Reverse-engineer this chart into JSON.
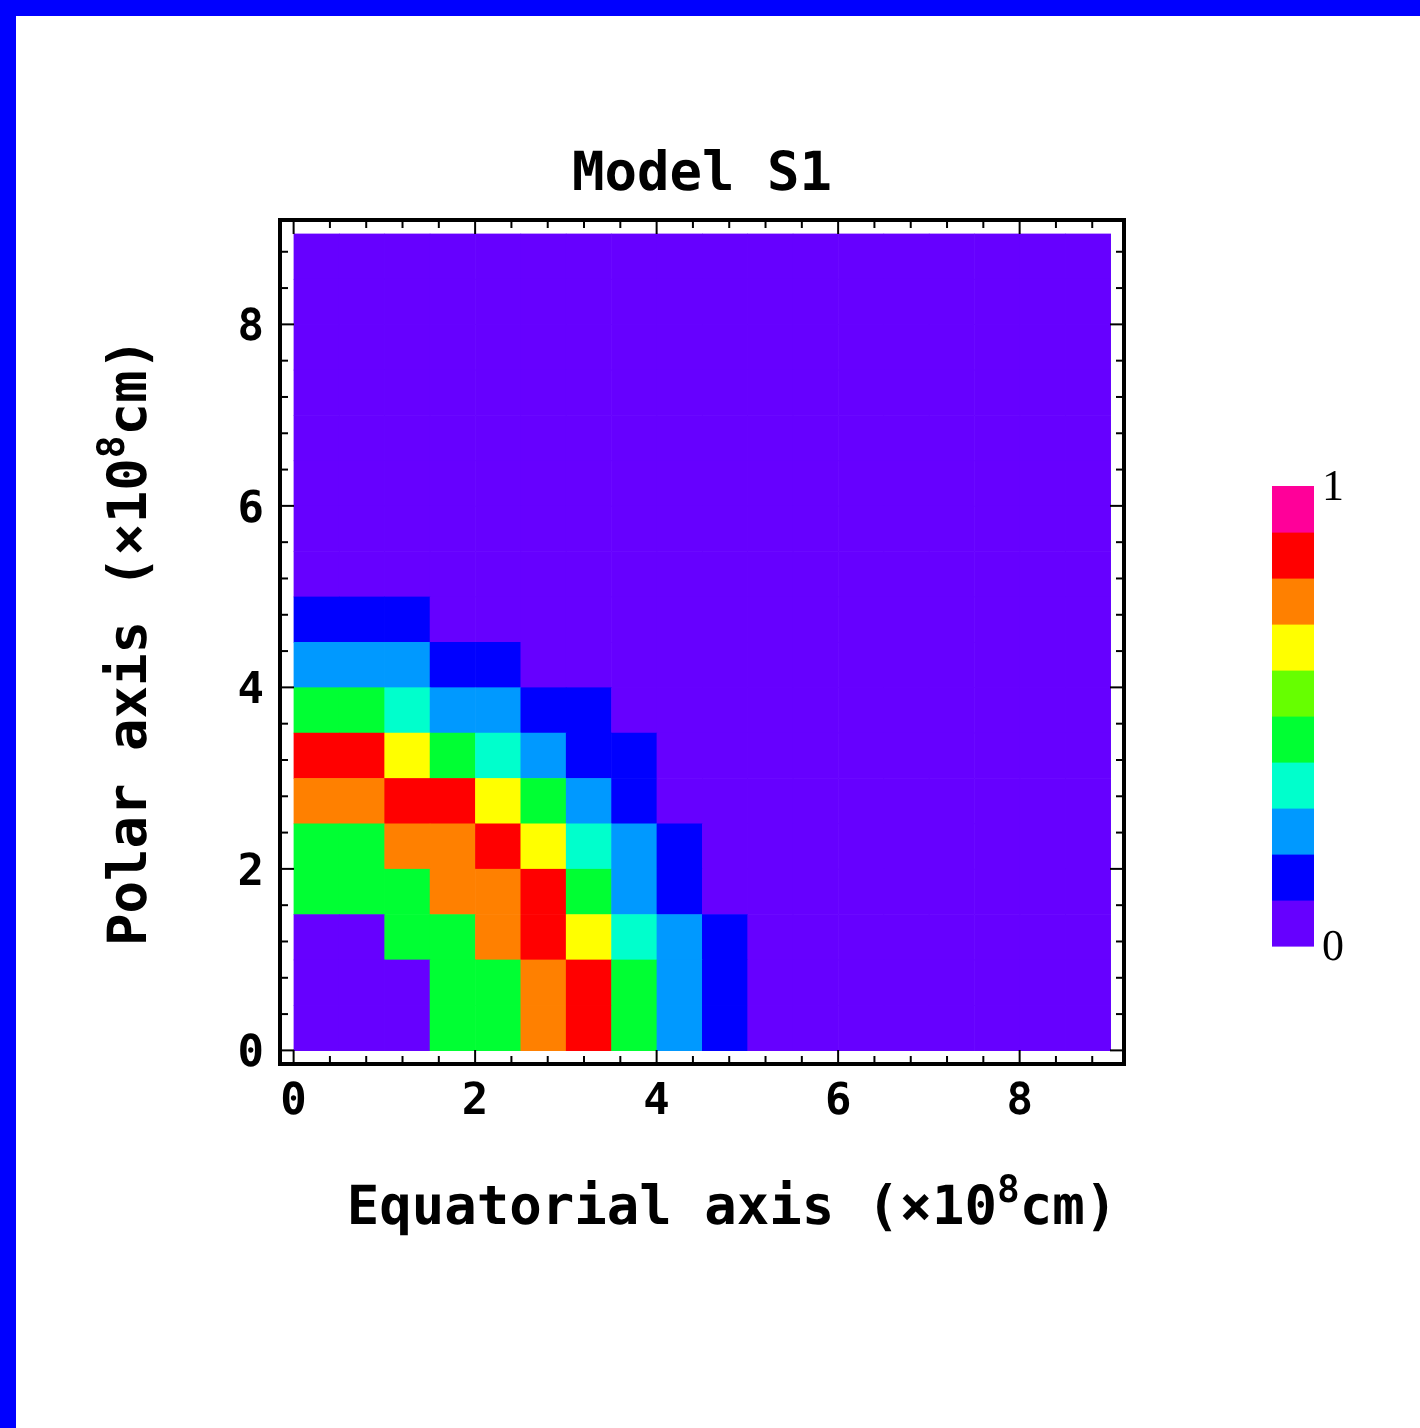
{
  "chart_data": {
    "type": "heatmap",
    "title": "Model S1",
    "xlabel": "Equatorial axis (×10$^{8}$cm)",
    "ylabel": "Polar axis (×10$^{8}$cm)",
    "x": [
      0.25,
      0.75,
      1.25,
      1.75,
      2.25,
      2.75,
      3.25,
      3.75,
      4.25,
      4.75,
      5.25,
      5.75,
      6.25,
      6.75,
      7.25,
      7.75,
      8.25,
      8.75
    ],
    "y": [
      8.75,
      8.25,
      7.75,
      7.25,
      6.75,
      6.25,
      5.75,
      5.25,
      4.75,
      4.25,
      3.75,
      3.25,
      2.75,
      2.25,
      1.75,
      1.25,
      0.75,
      0.25
    ],
    "xlim": [
      -0.15,
      9.15
    ],
    "ylim": [
      -0.15,
      9.15
    ],
    "xticks": [
      0,
      {
        "value": 0.4,
        "label": null
      },
      {
        "value": 0.8,
        "label": null
      },
      {
        "value": 1.2,
        "label": null
      },
      {
        "value": 1.6,
        "label": null
      },
      2,
      {
        "value": 2.4,
        "label": null
      },
      {
        "value": 2.8,
        "label": null
      },
      {
        "value": 3.2,
        "label": null
      },
      {
        "value": 3.6,
        "label": null
      },
      4,
      {
        "value": 4.4,
        "label": null
      },
      {
        "value": 4.8,
        "label": null
      },
      {
        "value": 5.2,
        "label": null
      },
      {
        "value": 5.6,
        "label": null
      },
      6,
      {
        "value": 6.4,
        "label": null
      },
      {
        "value": 6.8,
        "label": null
      },
      {
        "value": 7.2,
        "label": null
      },
      {
        "value": 7.6,
        "label": null
      },
      8,
      {
        "value": 8.4,
        "label": null
      },
      {
        "value": 8.8,
        "label": null
      }
    ],
    "yticks": [
      0,
      {
        "value": 0.4,
        "label": null
      },
      {
        "value": 0.8,
        "label": null
      },
      {
        "value": 1.2,
        "label": null
      },
      {
        "value": 1.6,
        "label": null
      },
      2,
      {
        "value": 2.4,
        "label": null
      },
      {
        "value": 2.8,
        "label": null
      },
      {
        "value": 3.2,
        "label": null
      },
      {
        "value": 3.6,
        "label": null
      },
      4,
      {
        "value": 4.4,
        "label": null
      },
      {
        "value": 4.8,
        "label": null
      },
      {
        "value": 5.2,
        "label": null
      },
      {
        "value": 5.6,
        "label": null
      },
      6,
      {
        "value": 6.4,
        "label": null
      },
      {
        "value": 6.8,
        "label": null
      },
      {
        "value": 7.2,
        "label": null
      },
      {
        "value": 7.6,
        "label": null
      },
      8,
      {
        "value": 8.4,
        "label": null
      },
      {
        "value": 8.8,
        "label": null
      }
    ],
    "clim": [
      0,
      1
    ],
    "cticks": [
      0,
      1
    ],
    "colors": [
      "#6600ff",
      "#0000ff",
      "#0099ff",
      "#00ffcc",
      "#00ff33",
      "#66ff00",
      "#ffff00",
      "#ff8000",
      "#ff0000",
      "#ff0099"
    ],
    "cells": [
      [
        0,
        0,
        0,
        0,
        0,
        0,
        0,
        0,
        0,
        0,
        0,
        0,
        0,
        0,
        0,
        0,
        0,
        0
      ],
      [
        0,
        0,
        0,
        0,
        0,
        0,
        0,
        0,
        0,
        0,
        0,
        0,
        0,
        0,
        0,
        0,
        0,
        0
      ],
      [
        0,
        0,
        0,
        0,
        0,
        0,
        0,
        0,
        0,
        0,
        0,
        0,
        0,
        0,
        0,
        0,
        0,
        0
      ],
      [
        0,
        0,
        0,
        0,
        0,
        0,
        0,
        0,
        0,
        0,
        0,
        0,
        0,
        0,
        0,
        0,
        0,
        0
      ],
      [
        0,
        0,
        0,
        0,
        0,
        0,
        0,
        0,
        0,
        0,
        0,
        0,
        0,
        0,
        0,
        0,
        0,
        0
      ],
      [
        0,
        0,
        0,
        0,
        0,
        0,
        0,
        0,
        0,
        0,
        0,
        0,
        0,
        0,
        0,
        0,
        0,
        0
      ],
      [
        0,
        0,
        0,
        0,
        0,
        0,
        0,
        0,
        0,
        0,
        0,
        0,
        0,
        0,
        0,
        0,
        0,
        0
      ],
      [
        0,
        0,
        0,
        0,
        0,
        0,
        0,
        0,
        0,
        0,
        0,
        0,
        0,
        0,
        0,
        0,
        0,
        0
      ],
      [
        0.15,
        0.15,
        0.15,
        0,
        0,
        0,
        0,
        0,
        0,
        0,
        0,
        0,
        0,
        0,
        0,
        0,
        0,
        0
      ],
      [
        0.25,
        0.25,
        0.25,
        0.15,
        0.15,
        0,
        0,
        0,
        0,
        0,
        0,
        0,
        0,
        0,
        0,
        0,
        0,
        0
      ],
      [
        0.45,
        0.45,
        0.35,
        0.25,
        0.25,
        0.15,
        0.15,
        0,
        0,
        0,
        0,
        0,
        0,
        0,
        0,
        0,
        0,
        0
      ],
      [
        0.85,
        0.85,
        0.65,
        0.45,
        0.35,
        0.25,
        0.15,
        0.15,
        0,
        0,
        0,
        0,
        0,
        0,
        0,
        0,
        0,
        0
      ],
      [
        0.75,
        0.75,
        0.85,
        0.85,
        0.65,
        0.45,
        0.25,
        0.15,
        0,
        0,
        0,
        0,
        0,
        0,
        0,
        0,
        0,
        0
      ],
      [
        0.45,
        0.45,
        0.75,
        0.75,
        0.85,
        0.65,
        0.35,
        0.25,
        0.15,
        0,
        0,
        0,
        0,
        0,
        0,
        0,
        0,
        0
      ],
      [
        0.45,
        0.45,
        0.45,
        0.75,
        0.75,
        0.85,
        0.45,
        0.25,
        0.15,
        0,
        0,
        0,
        0,
        0,
        0,
        0,
        0,
        0
      ],
      [
        0,
        0,
        0.45,
        0.45,
        0.75,
        0.85,
        0.65,
        0.35,
        0.25,
        0.15,
        0,
        0,
        0,
        0,
        0,
        0,
        0,
        0
      ],
      [
        0,
        0,
        0,
        0.45,
        0.45,
        0.75,
        0.85,
        0.45,
        0.25,
        0.15,
        0,
        0,
        0,
        0,
        0,
        0,
        0,
        0
      ],
      [
        0,
        0,
        0,
        0.45,
        0.45,
        0.75,
        0.85,
        0.45,
        0.25,
        0.15,
        0,
        0,
        0,
        0,
        0,
        0,
        0,
        0
      ]
    ]
  }
}
